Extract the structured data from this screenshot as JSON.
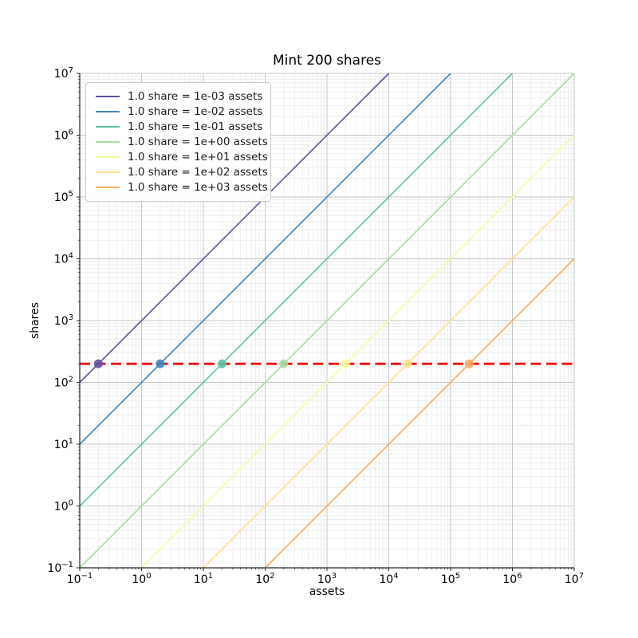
{
  "chart_data": {
    "type": "line",
    "title": "Mint 200 shares",
    "xlabel": "assets",
    "ylabel": "shares",
    "xscale": "log",
    "yscale": "log",
    "xlim": [
      0.1,
      10000000
    ],
    "ylim": [
      0.1,
      10000000
    ],
    "x_tick_exponents": [
      -1,
      0,
      1,
      2,
      3,
      4,
      5,
      6,
      7
    ],
    "y_tick_exponents": [
      -1,
      0,
      1,
      2,
      3,
      4,
      5,
      6,
      7
    ],
    "grid": {
      "enabled": true,
      "major_color": "#c6c6c6",
      "minor_color": "#eaeaea",
      "minor_multiples": [
        2,
        3,
        4,
        5,
        6,
        7,
        8,
        9
      ]
    },
    "legend_position": "upper left",
    "series": [
      {
        "label": "1.0 share = 1e-03 assets",
        "assets_per_share": 0.001,
        "color": "#5c53a5",
        "line": {
          "x": [
            0.1,
            10000
          ],
          "y": [
            100,
            10000000
          ]
        },
        "marker": {
          "x": 0.2,
          "y": 200
        }
      },
      {
        "label": "1.0 share = 1e-02 assets",
        "assets_per_share": 0.01,
        "color": "#3d87bd",
        "line": {
          "x": [
            0.1,
            100000
          ],
          "y": [
            10,
            10000000
          ]
        },
        "marker": {
          "x": 2,
          "y": 200
        }
      },
      {
        "label": "1.0 share = 1e-01 assets",
        "assets_per_share": 0.1,
        "color": "#5ec4a1",
        "line": {
          "x": [
            0.1,
            1000000
          ],
          "y": [
            1,
            10000000
          ]
        },
        "marker": {
          "x": 20,
          "y": 200
        }
      },
      {
        "label": "1.0 share = 1e+00 assets",
        "assets_per_share": 1,
        "color": "#a8dc9c",
        "line": {
          "x": [
            0.1,
            10000000
          ],
          "y": [
            0.1,
            10000000
          ]
        },
        "marker": {
          "x": 200,
          "y": 200
        }
      },
      {
        "label": "1.0 share = 1e+01 assets",
        "assets_per_share": 10,
        "color": "#f5fba0",
        "line": {
          "x": [
            1,
            10000000
          ],
          "y": [
            0.1,
            1000000
          ]
        },
        "marker": {
          "x": 2000,
          "y": 200
        }
      },
      {
        "label": "1.0 share = 1e+02 assets",
        "assets_per_share": 100,
        "color": "#fee18c",
        "line": {
          "x": [
            10,
            10000000
          ],
          "y": [
            0.1,
            100000
          ]
        },
        "marker": {
          "x": 20000,
          "y": 200
        }
      },
      {
        "label": "1.0 share = 1e+03 assets",
        "assets_per_share": 1000,
        "color": "#fcab5f",
        "line": {
          "x": [
            100,
            10000000
          ],
          "y": [
            0.1,
            10000
          ]
        },
        "marker": {
          "x": 200000,
          "y": 200
        }
      }
    ],
    "target_line": {
      "y": 200,
      "color": "#ee1111",
      "style": "dashed"
    }
  }
}
